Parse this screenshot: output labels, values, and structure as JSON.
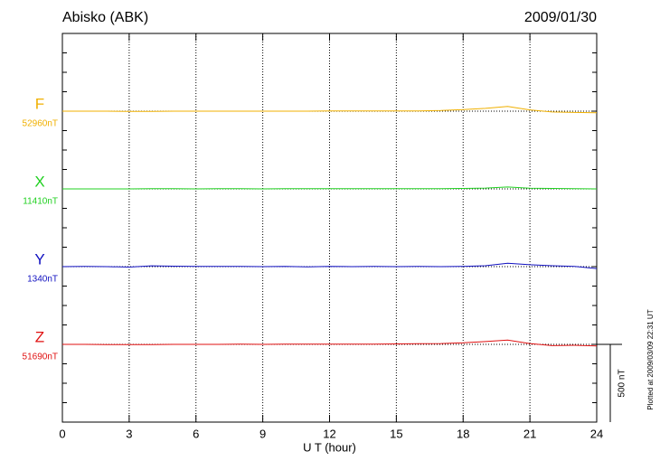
{
  "chart_data": {
    "type": "line",
    "title": "Abisko (ABK)",
    "date": "2009/01/30",
    "xlabel": "U T (hour)",
    "footnote": "Plotted at 2009/03/09 22:31 UT",
    "scale_bar": {
      "value": 500,
      "label": "500 nT"
    },
    "x": [
      0,
      1,
      2,
      3,
      4,
      5,
      6,
      7,
      8,
      9,
      10,
      11,
      12,
      13,
      14,
      15,
      16,
      17,
      18,
      19,
      20,
      21,
      22,
      23,
      24
    ],
    "xlim": [
      0,
      24
    ],
    "xticks": [
      0,
      3,
      6,
      9,
      12,
      15,
      18,
      21,
      24
    ],
    "ylim": [
      -500,
      2000
    ],
    "yticks": [
      -500,
      -375,
      -250,
      -125,
      0,
      125,
      250,
      375,
      500,
      625,
      750,
      875,
      1000,
      1125,
      1250,
      1375,
      1500,
      1625,
      1750,
      1875,
      2000
    ],
    "series": [
      {
        "name": "F",
        "baseline": {
          "value": 52960,
          "label": "52960nT"
        },
        "color": "#f0b000",
        "values": [
          0,
          0,
          0,
          -1,
          -1,
          0,
          0,
          0,
          0,
          0,
          0,
          0,
          1,
          1,
          1,
          1,
          2,
          4,
          10,
          18,
          30,
          8,
          -5,
          -8,
          -10
        ]
      },
      {
        "name": "X",
        "baseline": {
          "value": 11410,
          "label": "11410nT"
        },
        "color": "#20d020",
        "values": [
          0,
          0,
          0,
          0,
          1,
          1,
          0,
          1,
          1,
          0,
          2,
          2,
          1,
          1,
          2,
          2,
          1,
          2,
          3,
          5,
          12,
          4,
          3,
          2,
          0
        ]
      },
      {
        "name": "Y",
        "baseline": {
          "value": 1340,
          "label": "1340nT"
        },
        "color": "#1010c0",
        "values": [
          0,
          1,
          0,
          -3,
          5,
          3,
          2,
          1,
          2,
          0,
          1,
          -2,
          2,
          0,
          1,
          0,
          1,
          0,
          2,
          6,
          22,
          12,
          6,
          2,
          -12
        ]
      },
      {
        "name": "Z",
        "baseline": {
          "value": 51690,
          "label": "51690nT"
        },
        "color": "#e01010",
        "values": [
          0,
          0,
          -1,
          -2,
          -1,
          0,
          0,
          0,
          1,
          0,
          1,
          1,
          1,
          2,
          2,
          3,
          4,
          5,
          10,
          18,
          28,
          5,
          -8,
          -6,
          -10
        ]
      }
    ]
  }
}
